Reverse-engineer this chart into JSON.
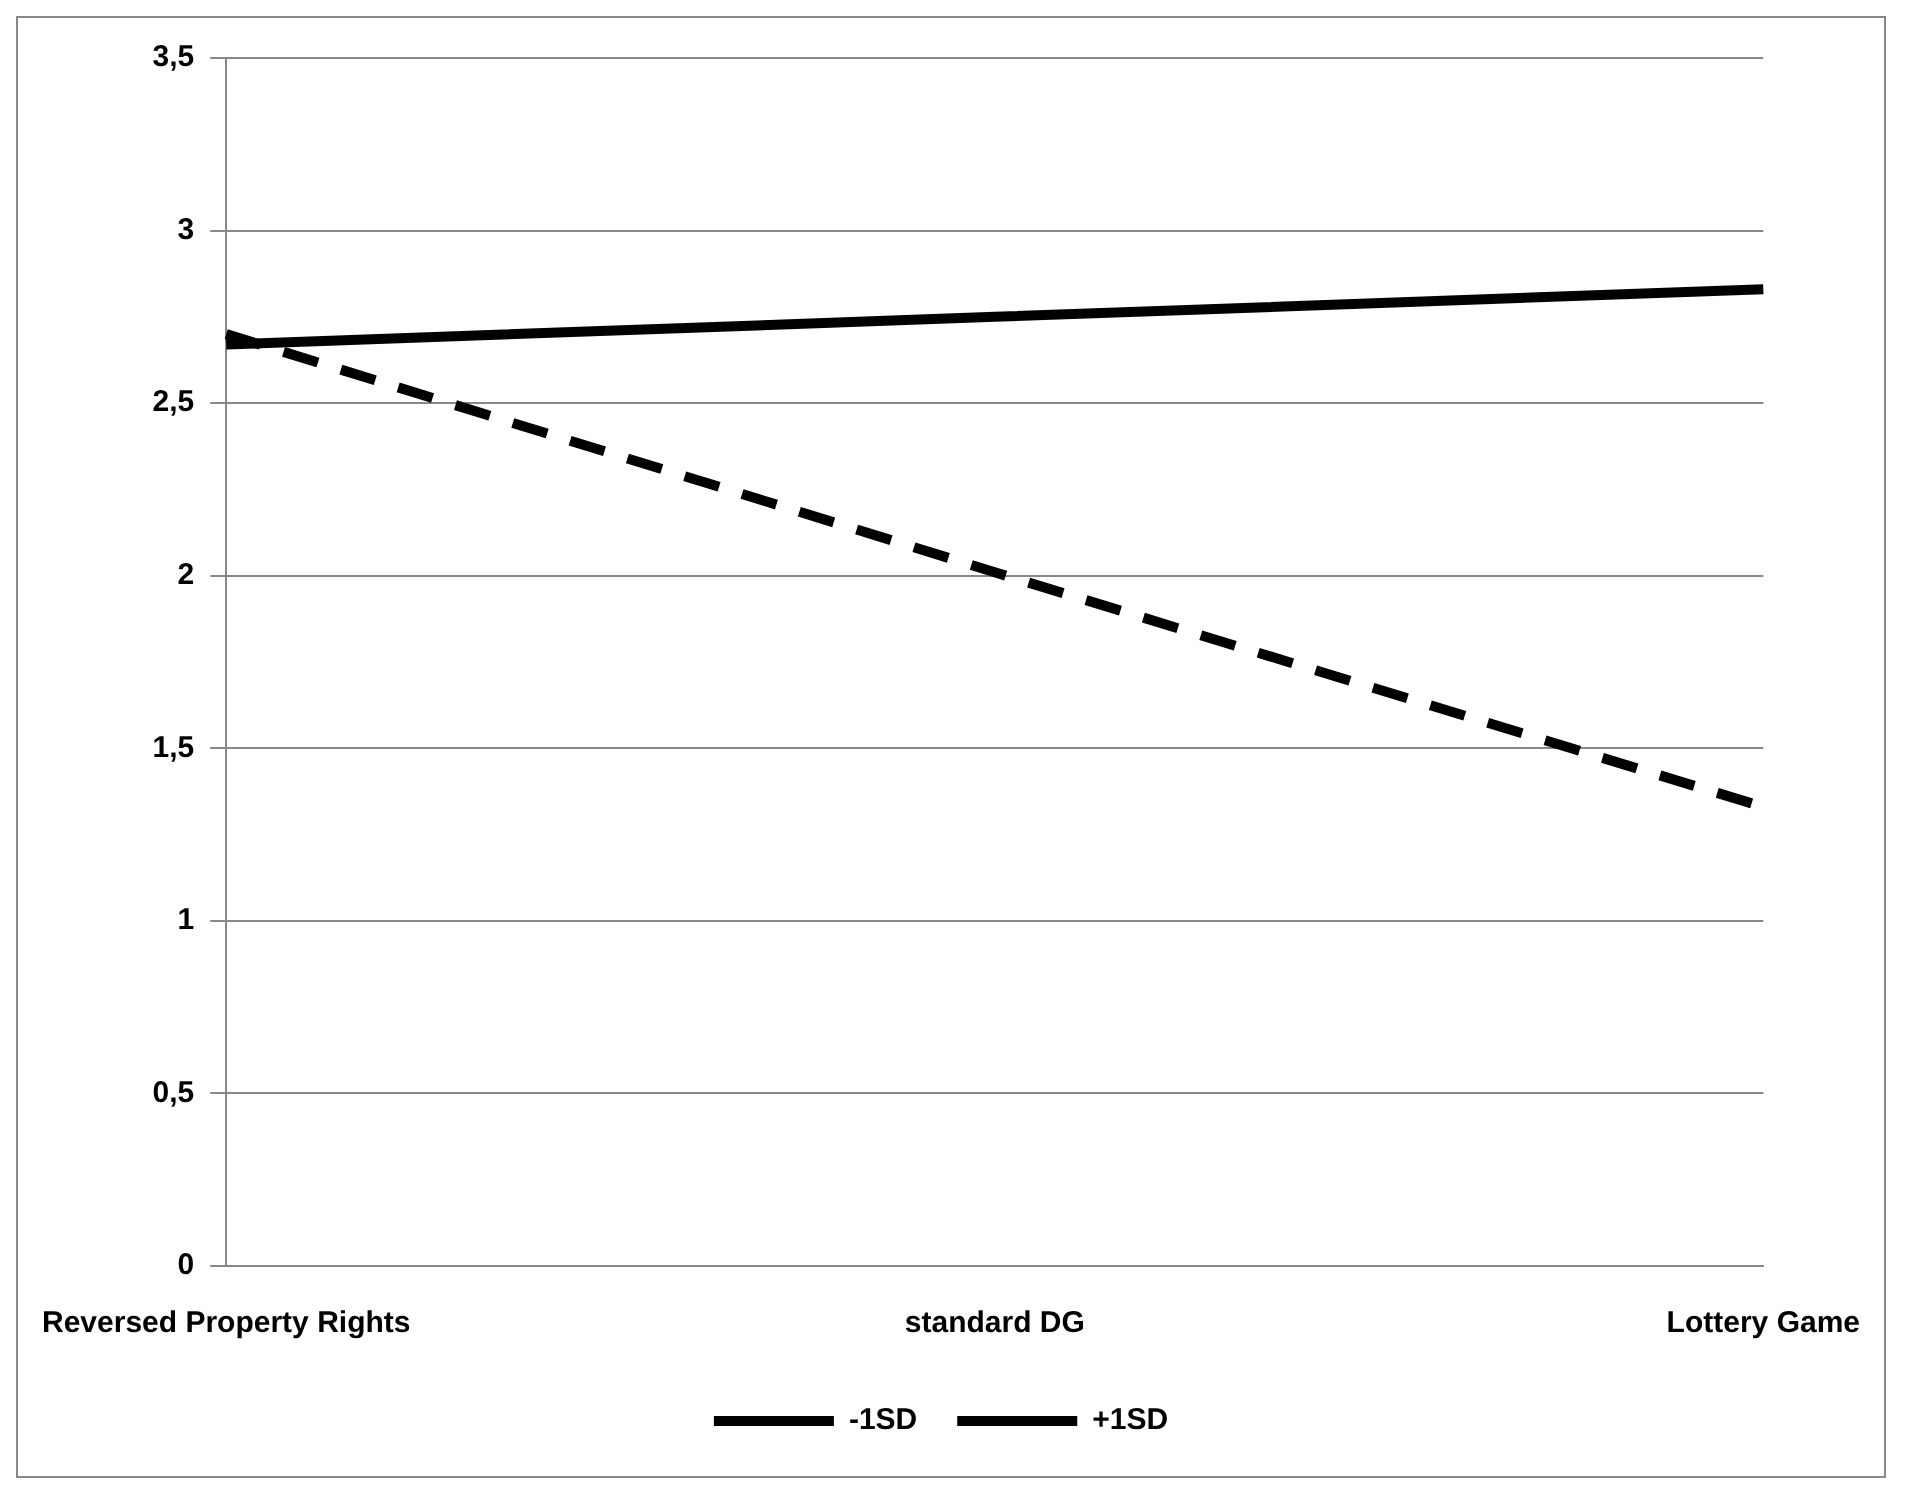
{
  "chart_data": {
    "type": "line",
    "categories": [
      "Reversed Property Rights",
      "standard DG",
      "Lottery Game"
    ],
    "series": [
      {
        "name": "-1SD",
        "color": "#000000",
        "values": [
          2.7,
          2.01,
          1.33
        ],
        "line_style": "dashed"
      },
      {
        "name": "+1SD",
        "color": "#000000",
        "values": [
          2.67,
          2.75,
          2.83
        ],
        "line_style": "solid"
      }
    ],
    "ylim": [
      0,
      3.5
    ],
    "yticks": [
      0,
      {
        "value": 0.5,
        "label": "0,5"
      },
      1,
      {
        "value": 1.5,
        "label": "1,5"
      },
      2,
      {
        "value": 2.5,
        "label": "2,5"
      },
      3,
      {
        "value": 3.5,
        "label": "3,5"
      }
    ],
    "grid": "y",
    "legend": "bottom",
    "marker": "none"
  }
}
